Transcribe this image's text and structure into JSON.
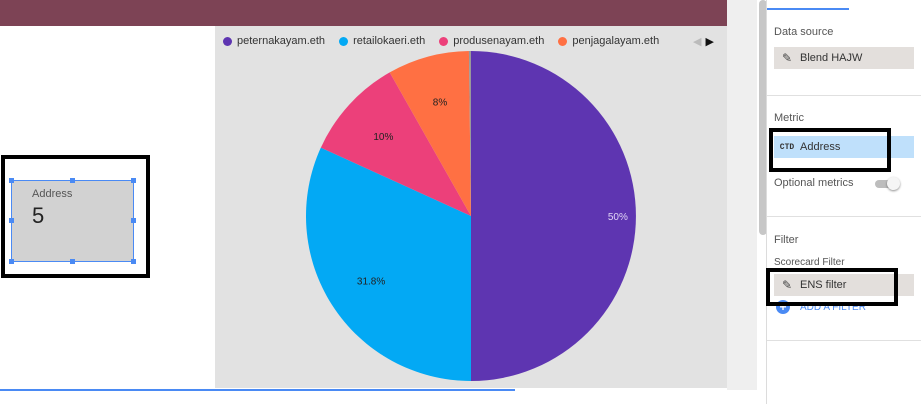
{
  "scorecard": {
    "label": "Address",
    "value": "5"
  },
  "chart_data": {
    "type": "pie",
    "legend_position": "top",
    "categories": [
      "peternakayam.eth",
      "retailokaeri.eth",
      "produsenayam.eth",
      "penjagalayam.eth"
    ],
    "values": [
      50,
      31.8,
      10,
      8
    ],
    "colors": [
      "#5e35b1",
      "#03a9f4",
      "#ec407a",
      "#ff7043"
    ],
    "data_labels": [
      "50%",
      "31.8%",
      "10%",
      "8%"
    ],
    "minor_slice": {
      "value": 0.2,
      "color": "#999999"
    }
  },
  "legend_nav": {
    "prev": "◀",
    "next": "▶"
  },
  "panel": {
    "data_source": {
      "title": "Data source",
      "value": "Blend HAJW",
      "icon": "pencil-icon"
    },
    "metric": {
      "title": "Metric",
      "badge": "CTD",
      "value": "Address",
      "optional_label": "Optional metrics"
    },
    "filter": {
      "title": "Filter",
      "subtitle": "Scorecard Filter",
      "value": "ENS filter",
      "icon": "pencil-icon",
      "add_label": "ADD A FILTER"
    }
  },
  "colors": {
    "topbar": "#7d4355",
    "accent": "#4a8af4",
    "highlight": "#000000"
  }
}
